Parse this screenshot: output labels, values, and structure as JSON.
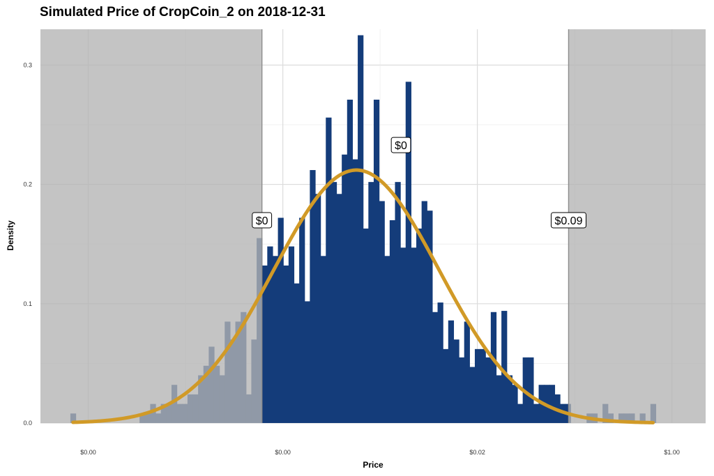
{
  "chart_data": {
    "type": "bar",
    "title": "Simulated Price of CropCoin_2 on 2018-12-31",
    "xlabel": "Price",
    "ylabel": "Density",
    "ylim": [
      0,
      0.33
    ],
    "y_ticks": [
      {
        "value": 0.0,
        "label": "0.0"
      },
      {
        "value": 0.1,
        "label": "0.1"
      },
      {
        "value": 0.2,
        "label": "0.2"
      },
      {
        "value": 0.3,
        "label": "0.3"
      }
    ],
    "x_ticks": [
      {
        "label": "$0.00",
        "pos": 0.0718
      },
      {
        "label": "$0.00",
        "pos": 0.3644
      },
      {
        "label": "$0.02",
        "pos": 0.6568
      },
      {
        "label": "$1.00",
        "pos": 0.9493
      }
    ],
    "grid": true,
    "shaded_tails": true,
    "bar_color": "#143c7a",
    "curve_color": "#d19a27",
    "shade_color": "#b3b3b3",
    "histogram": {
      "start": 0.045,
      "bin_width": 0.008,
      "densities": [
        0.008,
        0,
        0,
        0,
        0,
        0,
        0,
        0,
        0,
        0,
        0,
        0,
        0,
        0.008,
        0.008,
        0.016,
        0.008,
        0.016,
        0.016,
        0.032,
        0.016,
        0.016,
        0.024,
        0.024,
        0.04,
        0.048,
        0.064,
        0.048,
        0.04,
        0.085,
        0.07,
        0.085,
        0.093,
        0.024,
        0.07,
        0.155,
        0.132,
        0.148,
        0.14,
        0.172,
        0.132,
        0.148,
        0.117,
        0.172,
        0.102,
        0.212,
        0.192,
        0.14,
        0.256,
        0.202,
        0.192,
        0.225,
        0.271,
        0.221,
        0.325,
        0.163,
        0.202,
        0.271,
        0.186,
        0.14,
        0.17,
        0.202,
        0.147,
        0.286,
        0.147,
        0.163,
        0.186,
        0.178,
        0.093,
        0.101,
        0.062,
        0.086,
        0.07,
        0.055,
        0.085,
        0.047,
        0.062,
        0.062,
        0.055,
        0.093,
        0.04,
        0.094,
        0.04,
        0.032,
        0.016,
        0.055,
        0.055,
        0.016,
        0.032,
        0.032,
        0.032,
        0.024,
        0.016,
        0.016,
        0,
        0,
        0,
        0.008,
        0.008,
        0,
        0.016,
        0.008,
        0,
        0.008,
        0.008,
        0.008,
        0,
        0.008,
        0,
        0.016
      ]
    },
    "normal_curve": {
      "mean": 0.475,
      "sd": 0.124,
      "peak_density": 0.212
    },
    "tail_cutoffs": {
      "low": 0.333,
      "high": 0.794
    },
    "callouts": [
      {
        "label": "$0",
        "x": 0.333,
        "y": 0.17
      },
      {
        "label": "$0",
        "x": 0.542,
        "y": 0.233
      },
      {
        "label": "$0.09",
        "x": 0.794,
        "y": 0.17
      }
    ]
  }
}
